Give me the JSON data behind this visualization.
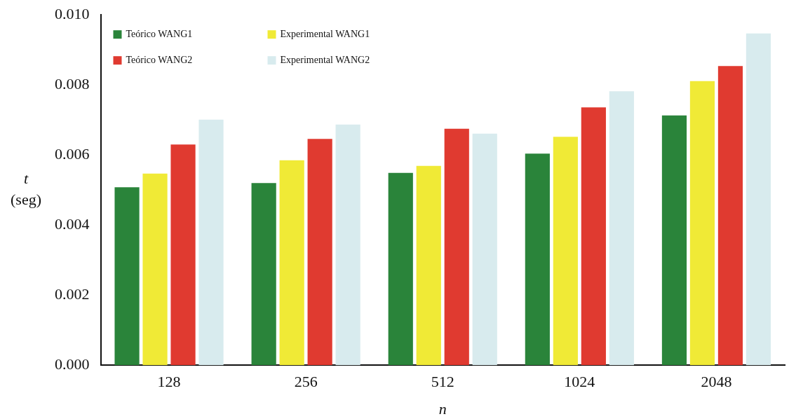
{
  "chart_data": {
    "type": "bar",
    "xlabel": "n",
    "ylabel": "t (seg)",
    "categories": [
      "128",
      "256",
      "512",
      "1024",
      "2048"
    ],
    "series": [
      {
        "name": "Teórico WANG1",
        "color": "#2a843a",
        "values": [
          0.00508,
          0.0052,
          0.00549,
          0.00604,
          0.00713
        ]
      },
      {
        "name": "Experimental WANG1",
        "color": "#f0ea36",
        "values": [
          0.00547,
          0.00585,
          0.00569,
          0.00652,
          0.00811
        ]
      },
      {
        "name": "Teórico WANG2",
        "color": "#e03a30",
        "values": [
          0.0063,
          0.00646,
          0.00675,
          0.00736,
          0.00854
        ]
      },
      {
        "name": "Experimental WANG2",
        "color": "#d8ebee",
        "values": [
          0.00701,
          0.00687,
          0.00661,
          0.00782,
          0.00947
        ]
      }
    ],
    "ylim": [
      0,
      0.01
    ],
    "yticks": [
      {
        "value": 0,
        "label": "0.000"
      },
      {
        "value": 0.002,
        "label": "0.002"
      },
      {
        "value": 0.004,
        "label": "0.004"
      },
      {
        "value": 0.006,
        "label": "0.006"
      },
      {
        "value": 0.008,
        "label": "0.008"
      },
      {
        "value": 0.01,
        "label": "0.010"
      }
    ],
    "grid": false,
    "legend": "top left"
  }
}
